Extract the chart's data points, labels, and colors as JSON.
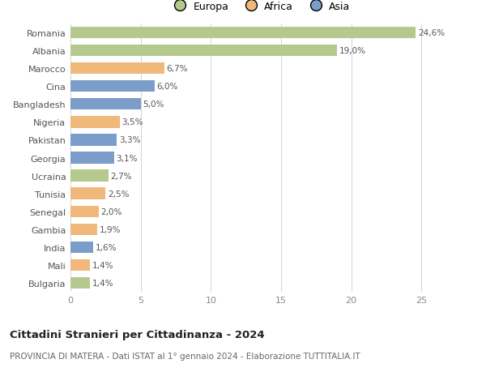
{
  "countries": [
    "Romania",
    "Albania",
    "Marocco",
    "Cina",
    "Bangladesh",
    "Nigeria",
    "Pakistan",
    "Georgia",
    "Ucraina",
    "Tunisia",
    "Senegal",
    "Gambia",
    "India",
    "Mali",
    "Bulgaria"
  ],
  "values": [
    24.6,
    19.0,
    6.7,
    6.0,
    5.0,
    3.5,
    3.3,
    3.1,
    2.7,
    2.5,
    2.0,
    1.9,
    1.6,
    1.4,
    1.4
  ],
  "labels": [
    "24,6%",
    "19,0%",
    "6,7%",
    "6,0%",
    "5,0%",
    "3,5%",
    "3,3%",
    "3,1%",
    "2,7%",
    "2,5%",
    "2,0%",
    "1,9%",
    "1,6%",
    "1,4%",
    "1,4%"
  ],
  "continents": [
    "Europa",
    "Europa",
    "Africa",
    "Asia",
    "Asia",
    "Africa",
    "Asia",
    "Asia",
    "Europa",
    "Africa",
    "Africa",
    "Africa",
    "Asia",
    "Africa",
    "Europa"
  ],
  "colors": {
    "Europa": "#b5c98e",
    "Africa": "#f0b87a",
    "Asia": "#7b9dc9"
  },
  "title": "Cittadini Stranieri per Cittadinanza - 2024",
  "subtitle": "PROVINCIA DI MATERA - Dati ISTAT al 1° gennaio 2024 - Elaborazione TUTTITALIA.IT",
  "xlim": [
    0,
    27
  ],
  "xticks": [
    0,
    5,
    10,
    15,
    20,
    25
  ],
  "background_color": "#ffffff",
  "grid_color": "#cccccc",
  "bar_height": 0.65,
  "label_fontsize": 7.5,
  "ytick_fontsize": 8.0,
  "xtick_fontsize": 8.0,
  "title_fontsize": 9.5,
  "subtitle_fontsize": 7.5
}
